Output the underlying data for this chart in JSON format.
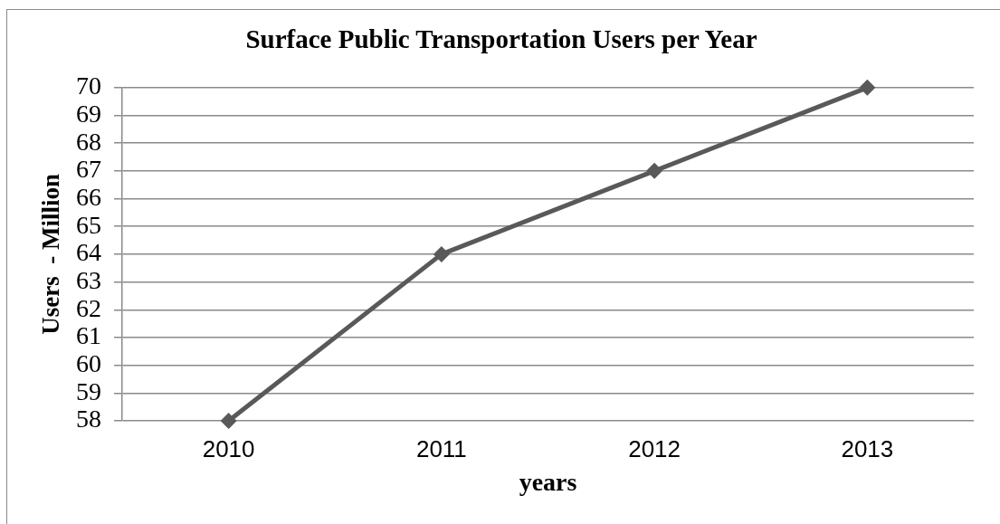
{
  "chart_data": {
    "type": "line",
    "title": "Surface Public Transportation Users per Year",
    "xlabel": "years",
    "ylabel": "Users  - Million",
    "categories": [
      "2010",
      "2011",
      "2012",
      "2013"
    ],
    "series": [
      {
        "color": "#595959",
        "values": [
          58,
          64,
          67,
          70
        ]
      }
    ],
    "ylim": [
      58,
      70
    ],
    "yticks": [
      58,
      59,
      60,
      61,
      62,
      63,
      64,
      65,
      66,
      67,
      68,
      69,
      70
    ],
    "grid": "y",
    "marker": "diamond",
    "line_style": "solid"
  }
}
